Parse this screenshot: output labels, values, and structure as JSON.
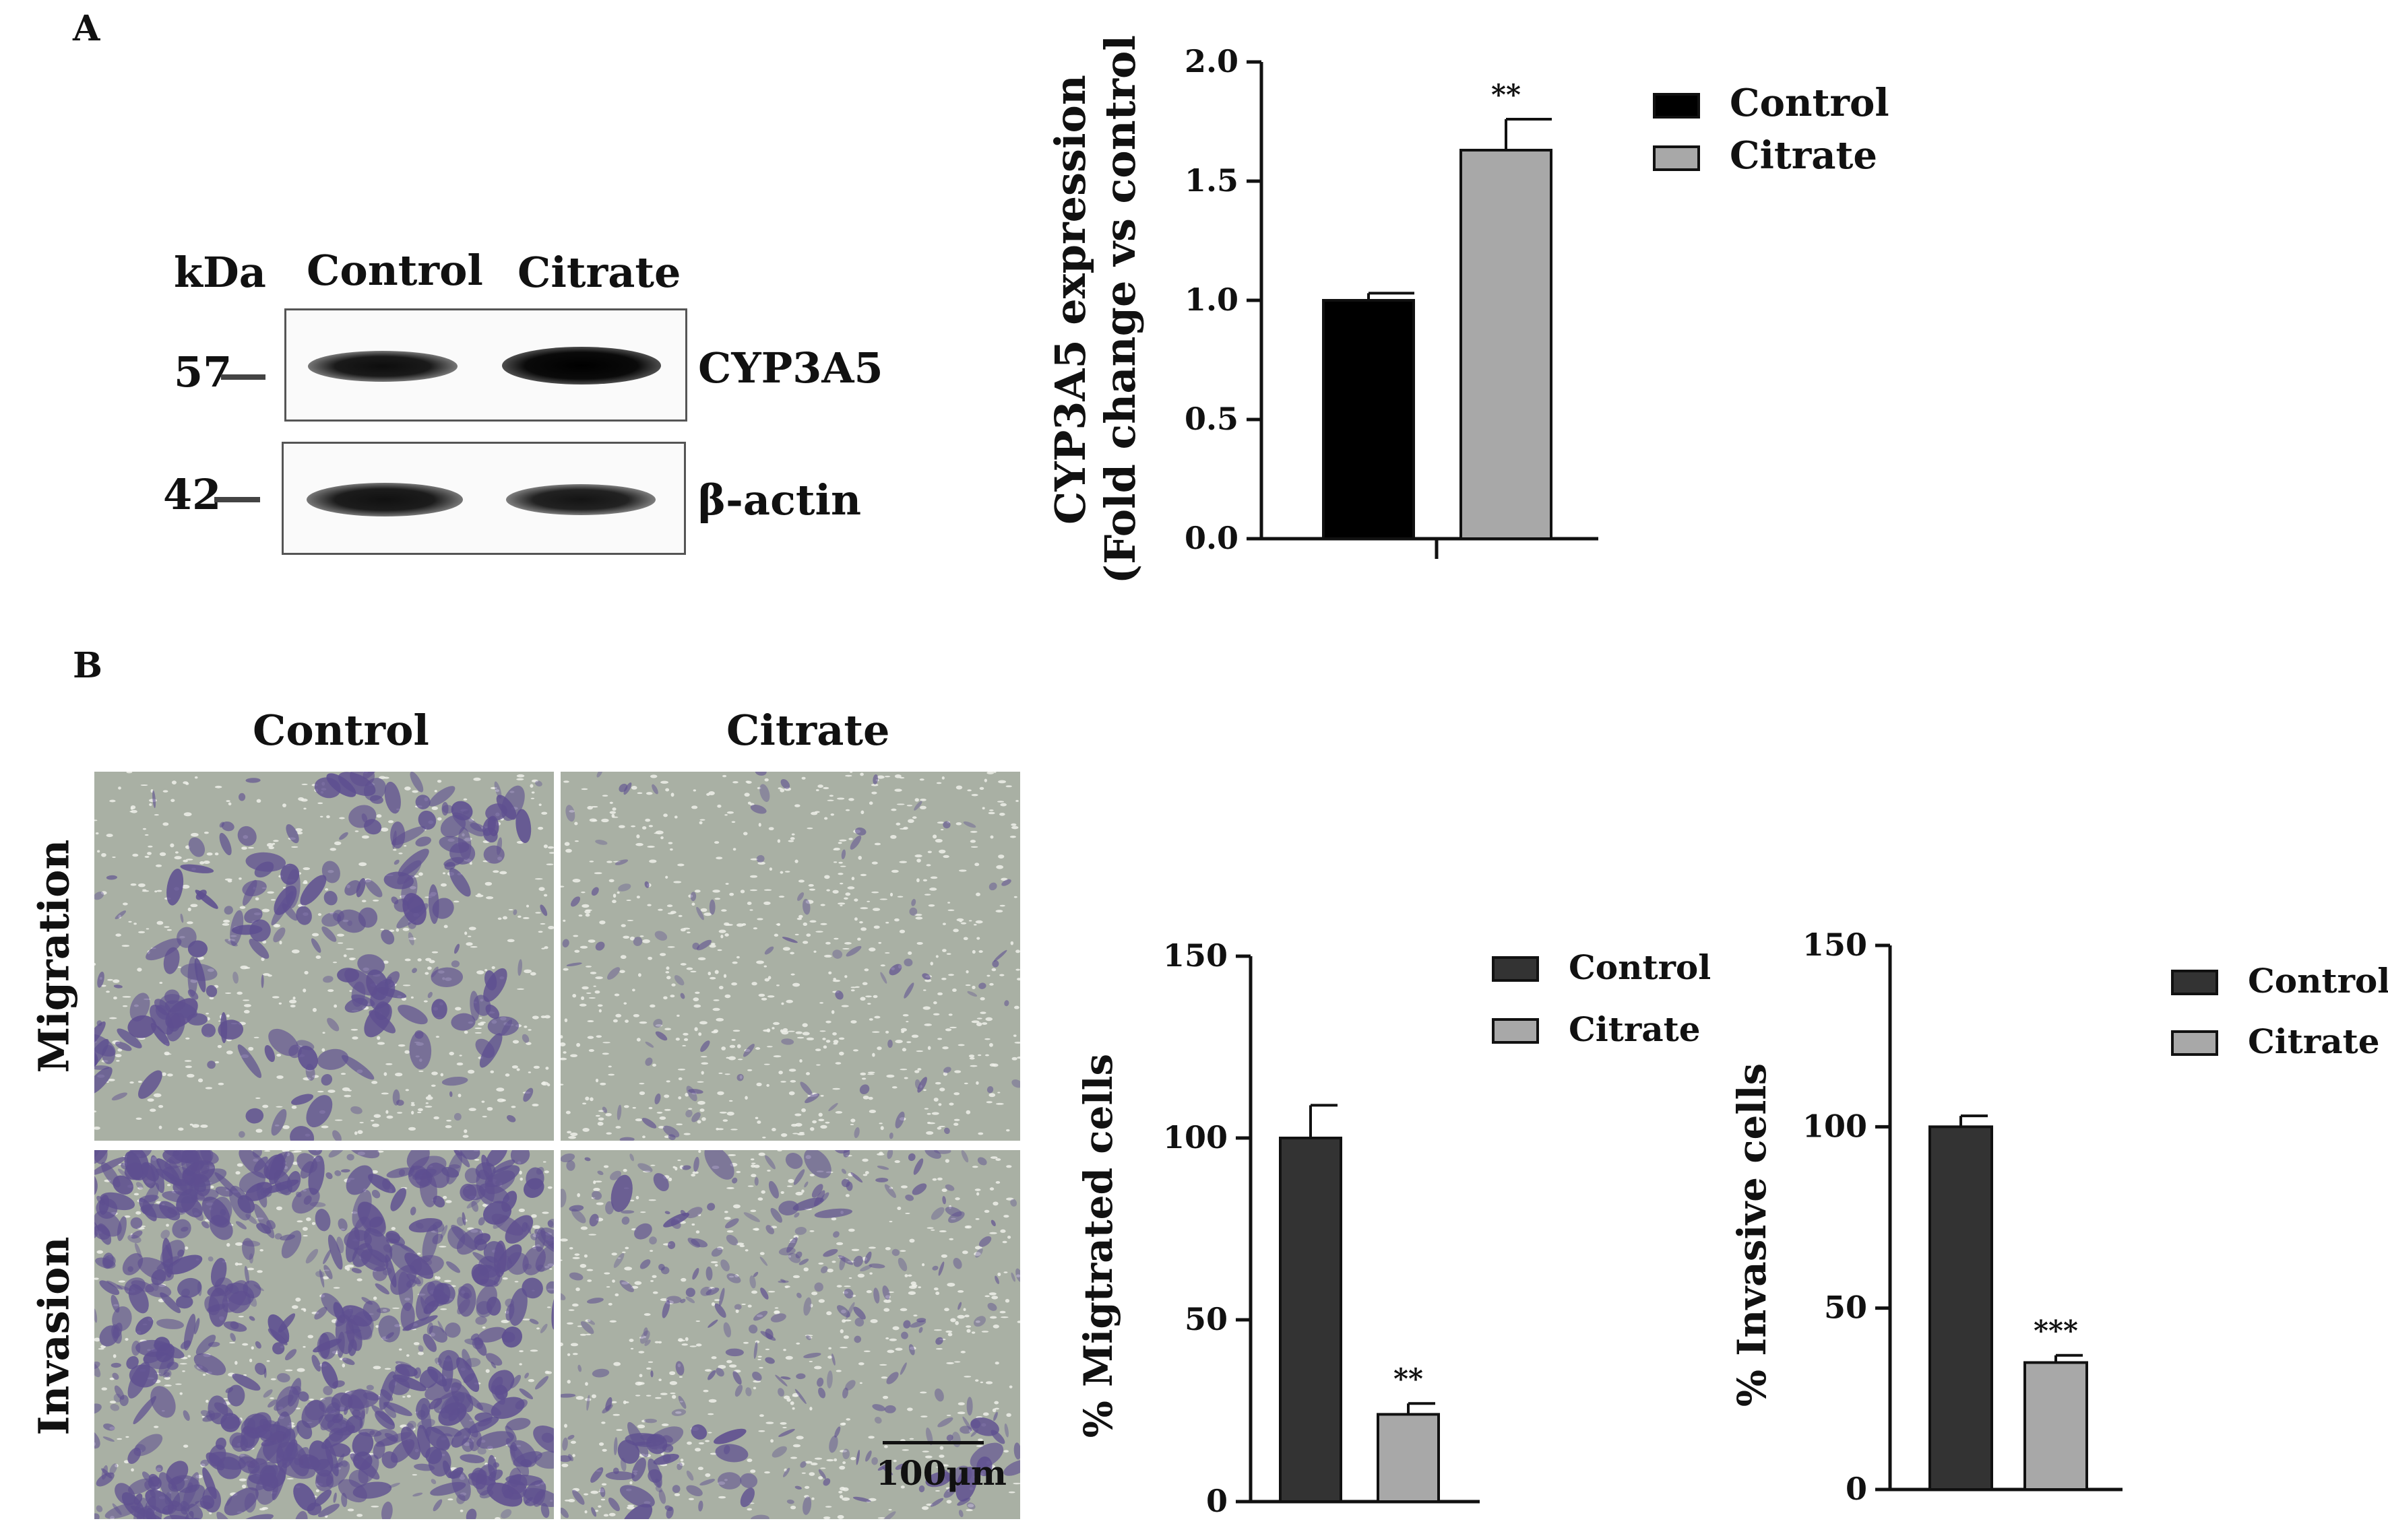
{
  "panel_a": {
    "letter": "A",
    "western_blot": {
      "kda_label": "kDa",
      "lanes": [
        "Control",
        "Citrate"
      ],
      "rows": [
        {
          "marker": "57",
          "protein": "CYP3A5"
        },
        {
          "marker": "42",
          "protein": "β-actin"
        }
      ]
    }
  },
  "panel_b": {
    "letter": "B",
    "micrograph": {
      "columns": [
        "Control",
        "Citrate"
      ],
      "rows": [
        "Migration",
        "Invasion"
      ],
      "scale_bar": "100μm"
    }
  },
  "colors": {
    "control_a": "#000000",
    "citrate": "#a8a8a8",
    "control_b": "#333333",
    "micrograph_bg": "#a9b0a4",
    "stain": "#5e4f90"
  },
  "chart_data": [
    {
      "type": "bar",
      "ylabel_lines": [
        "CYP3A5 expression",
        "(Fold change vs control)"
      ],
      "ylim": [
        0,
        2.0
      ],
      "yticks": [
        0.0,
        0.5,
        1.0,
        1.5,
        2.0
      ],
      "tick_labels": [
        "0.0",
        "0.5",
        "1.0",
        "1.5",
        "2.0"
      ],
      "categories": [
        "Control",
        "Citrate"
      ],
      "values": [
        1.0,
        1.63
      ],
      "errors": [
        0.03,
        0.13
      ],
      "annotations": [
        "",
        "**"
      ],
      "legend": [
        "Control",
        "Citrate"
      ],
      "legend_position": "right"
    },
    {
      "type": "bar",
      "ylabel": "% Migtrated  cells",
      "ylim": [
        0,
        150
      ],
      "yticks": [
        0,
        50,
        100,
        150
      ],
      "tick_labels": [
        "0",
        "50",
        "100",
        "150"
      ],
      "categories": [
        "Control",
        "Citrate"
      ],
      "values": [
        100,
        24
      ],
      "errors": [
        9,
        3
      ],
      "annotations": [
        "",
        "**"
      ],
      "legend": [
        "Control",
        "Citrate"
      ],
      "legend_position": "right"
    },
    {
      "type": "bar",
      "ylabel": "% Invasive cells",
      "ylim": [
        0,
        150
      ],
      "yticks": [
        0,
        50,
        100,
        150
      ],
      "tick_labels": [
        "0",
        "50",
        "100",
        "150"
      ],
      "categories": [
        "Control",
        "Citrate"
      ],
      "values": [
        100,
        35
      ],
      "errors": [
        3,
        2
      ],
      "annotations": [
        "",
        "***"
      ],
      "legend": [
        "Control",
        "Citrate"
      ],
      "legend_position": "right"
    }
  ]
}
